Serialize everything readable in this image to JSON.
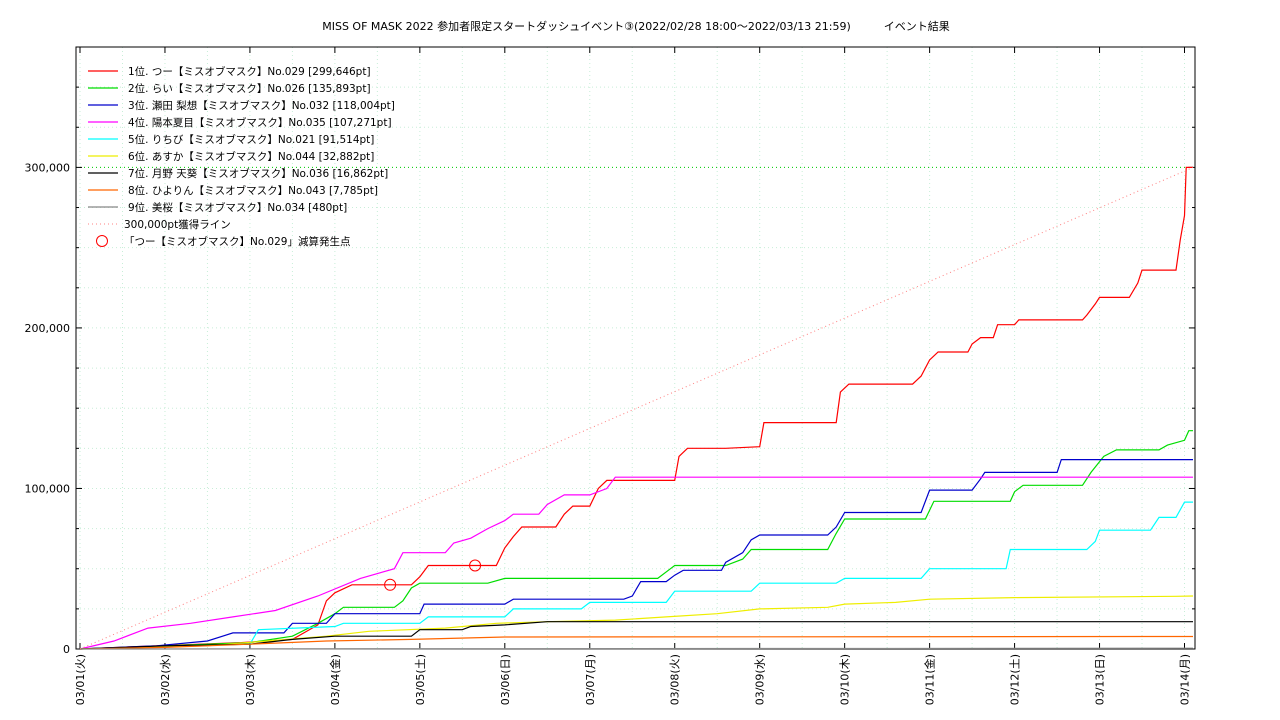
{
  "chart_data": {
    "type": "line",
    "title": "MISS OF MASK 2022 参加者限定スタートダッシュイベント③(2022/02/28 18:00～2022/03/13 21:59)　　　イベント結果",
    "xlabel": "",
    "ylabel": "",
    "ylim": [
      0,
      375000
    ],
    "yticks": [
      0,
      100000,
      200000,
      300000
    ],
    "ytick_labels": [
      "0",
      "100,000",
      "200,000",
      "300,000"
    ],
    "xlim": [
      0,
      13.1
    ],
    "xticks": [
      0,
      1,
      2,
      3,
      4,
      5,
      6,
      7,
      8,
      9,
      10,
      11,
      12,
      13
    ],
    "xtick_labels": [
      "03/01(火)",
      "03/02(水)",
      "03/03(木)",
      "03/04(金)",
      "03/05(土)",
      "03/06(日)",
      "03/07(月)",
      "03/08(火)",
      "03/09(水)",
      "03/10(木)",
      "03/11(金)",
      "03/12(土)",
      "03/13(日)",
      "03/14(月)"
    ],
    "grid": true,
    "legend_position": "top-left",
    "series": [
      {
        "name": "1位. つー【ミスオブマスク】No.029 [299,646pt]",
        "color": "#ff0000",
        "points": [
          [
            0,
            0
          ],
          [
            0.9,
            2000
          ],
          [
            1.9,
            4000
          ],
          [
            2.5,
            6000
          ],
          [
            2.8,
            15000
          ],
          [
            2.9,
            30000
          ],
          [
            3.0,
            35000
          ],
          [
            3.2,
            40000
          ],
          [
            3.9,
            40000
          ],
          [
            4.0,
            45000
          ],
          [
            4.1,
            52000
          ],
          [
            4.9,
            52000
          ],
          [
            5.0,
            63000
          ],
          [
            5.1,
            70000
          ],
          [
            5.2,
            76000
          ],
          [
            5.6,
            76000
          ],
          [
            5.7,
            84000
          ],
          [
            5.8,
            89000
          ],
          [
            6.0,
            89000
          ],
          [
            6.1,
            100000
          ],
          [
            6.2,
            105000
          ],
          [
            7.0,
            105000
          ],
          [
            7.05,
            120000
          ],
          [
            7.15,
            125000
          ],
          [
            7.6,
            125000
          ],
          [
            8.0,
            126000
          ],
          [
            8.05,
            141000
          ],
          [
            8.9,
            141000
          ],
          [
            8.95,
            160000
          ],
          [
            9.05,
            165000
          ],
          [
            9.8,
            165000
          ],
          [
            9.9,
            170000
          ],
          [
            10.0,
            180000
          ],
          [
            10.1,
            185000
          ],
          [
            10.45,
            185000
          ],
          [
            10.5,
            190000
          ],
          [
            10.6,
            194000
          ],
          [
            10.75,
            194000
          ],
          [
            10.8,
            202000
          ],
          [
            11.0,
            202000
          ],
          [
            11.05,
            205000
          ],
          [
            11.8,
            205000
          ],
          [
            11.85,
            208000
          ],
          [
            11.95,
            215000
          ],
          [
            12.0,
            219000
          ],
          [
            12.35,
            219000
          ],
          [
            12.45,
            228000
          ],
          [
            12.5,
            236000
          ],
          [
            12.9,
            236000
          ],
          [
            12.95,
            255000
          ],
          [
            13.0,
            270000
          ],
          [
            13.02,
            300000
          ],
          [
            13.1,
            300000
          ]
        ]
      },
      {
        "name": "2位. らい【ミスオブマスク】No.026 [135,893pt]",
        "color": "#00dd00",
        "points": [
          [
            0,
            0
          ],
          [
            1.0,
            2000
          ],
          [
            2.0,
            4000
          ],
          [
            2.5,
            8000
          ],
          [
            2.8,
            16000
          ],
          [
            3.0,
            22000
          ],
          [
            3.1,
            26000
          ],
          [
            3.7,
            26000
          ],
          [
            3.8,
            30000
          ],
          [
            3.9,
            38000
          ],
          [
            4.0,
            41000
          ],
          [
            4.8,
            41000
          ],
          [
            5.0,
            44000
          ],
          [
            6.8,
            44000
          ],
          [
            6.95,
            50000
          ],
          [
            7.0,
            52000
          ],
          [
            7.6,
            52000
          ],
          [
            7.8,
            56000
          ],
          [
            7.9,
            62000
          ],
          [
            8.8,
            62000
          ],
          [
            8.9,
            72000
          ],
          [
            9.0,
            81000
          ],
          [
            9.95,
            81000
          ],
          [
            10.05,
            92000
          ],
          [
            10.95,
            92000
          ],
          [
            11.0,
            98000
          ],
          [
            11.1,
            102000
          ],
          [
            11.8,
            102000
          ],
          [
            11.9,
            110000
          ],
          [
            12.05,
            120000
          ],
          [
            12.2,
            124000
          ],
          [
            12.7,
            124000
          ],
          [
            12.8,
            127000
          ],
          [
            13.0,
            130000
          ],
          [
            13.05,
            136000
          ],
          [
            13.1,
            136000
          ]
        ]
      },
      {
        "name": "3位. 瀬田 梨想【ミスオブマスク】No.032 [118,004pt]",
        "color": "#0000cc",
        "points": [
          [
            0,
            0
          ],
          [
            0.9,
            2000
          ],
          [
            1.5,
            5000
          ],
          [
            1.8,
            10000
          ],
          [
            2.4,
            10000
          ],
          [
            2.5,
            16000
          ],
          [
            2.9,
            16000
          ],
          [
            3.0,
            22000
          ],
          [
            4.0,
            22000
          ],
          [
            4.05,
            28000
          ],
          [
            5.0,
            28000
          ],
          [
            5.1,
            31000
          ],
          [
            6.4,
            31000
          ],
          [
            6.5,
            33000
          ],
          [
            6.6,
            42000
          ],
          [
            6.9,
            42000
          ],
          [
            7.0,
            46000
          ],
          [
            7.1,
            49000
          ],
          [
            7.55,
            49000
          ],
          [
            7.6,
            54000
          ],
          [
            7.8,
            60000
          ],
          [
            7.9,
            68000
          ],
          [
            8.0,
            71000
          ],
          [
            8.8,
            71000
          ],
          [
            8.9,
            76000
          ],
          [
            9.0,
            85000
          ],
          [
            9.9,
            85000
          ],
          [
            10.0,
            99000
          ],
          [
            10.5,
            99000
          ],
          [
            10.6,
            106000
          ],
          [
            10.65,
            110000
          ],
          [
            11.5,
            110000
          ],
          [
            11.55,
            118000
          ],
          [
            13.1,
            118000
          ]
        ]
      },
      {
        "name": "4位. 陽本夏目【ミスオブマスク】No.035 [107,271pt]",
        "color": "#ff00ff",
        "points": [
          [
            0,
            0
          ],
          [
            0.4,
            5000
          ],
          [
            0.8,
            13000
          ],
          [
            1.3,
            16000
          ],
          [
            1.8,
            20000
          ],
          [
            2.3,
            24000
          ],
          [
            2.8,
            33000
          ],
          [
            3.3,
            44000
          ],
          [
            3.7,
            50000
          ],
          [
            3.8,
            60000
          ],
          [
            4.3,
            60000
          ],
          [
            4.4,
            66000
          ],
          [
            4.6,
            69000
          ],
          [
            4.8,
            75000
          ],
          [
            5.0,
            80000
          ],
          [
            5.1,
            84000
          ],
          [
            5.4,
            84000
          ],
          [
            5.5,
            90000
          ],
          [
            5.7,
            96000
          ],
          [
            6.0,
            96000
          ],
          [
            6.2,
            100000
          ],
          [
            6.3,
            107000
          ],
          [
            13.1,
            107000
          ]
        ]
      },
      {
        "name": "5位. りちび【ミスオブマスク】No.021 [91,514pt]",
        "color": "#00ffff",
        "points": [
          [
            0,
            0
          ],
          [
            2.0,
            3000
          ],
          [
            2.1,
            12000
          ],
          [
            3.0,
            14000
          ],
          [
            3.1,
            16000
          ],
          [
            4.0,
            16000
          ],
          [
            4.1,
            20000
          ],
          [
            5.0,
            20000
          ],
          [
            5.1,
            25000
          ],
          [
            5.9,
            25000
          ],
          [
            6.0,
            29000
          ],
          [
            6.9,
            29000
          ],
          [
            7.0,
            36000
          ],
          [
            7.9,
            36000
          ],
          [
            8.0,
            41000
          ],
          [
            8.9,
            41000
          ],
          [
            9.0,
            44000
          ],
          [
            9.9,
            44000
          ],
          [
            10.0,
            50000
          ],
          [
            10.9,
            50000
          ],
          [
            10.95,
            62000
          ],
          [
            11.85,
            62000
          ],
          [
            11.95,
            67000
          ],
          [
            12.0,
            74000
          ],
          [
            12.6,
            74000
          ],
          [
            12.7,
            82000
          ],
          [
            12.9,
            82000
          ],
          [
            13.0,
            91500
          ],
          [
            13.1,
            91500
          ]
        ]
      },
      {
        "name": "6位. あすか【ミスオブマスク】No.044 [32,882pt]",
        "color": "#eeee00",
        "points": [
          [
            0,
            0
          ],
          [
            1.5,
            2000
          ],
          [
            2.2,
            5000
          ],
          [
            2.9,
            8000
          ],
          [
            3.4,
            11000
          ],
          [
            4.3,
            13000
          ],
          [
            4.9,
            16000
          ],
          [
            5.5,
            17000
          ],
          [
            6.3,
            18000
          ],
          [
            6.9,
            20000
          ],
          [
            7.5,
            22000
          ],
          [
            8.0,
            25000
          ],
          [
            8.8,
            26000
          ],
          [
            9.0,
            28000
          ],
          [
            9.6,
            29000
          ],
          [
            10.0,
            31000
          ],
          [
            11.0,
            32000
          ],
          [
            12.9,
            32800
          ],
          [
            13.1,
            33000
          ]
        ]
      },
      {
        "name": "7位. 月野 天葵【ミスオブマスク】No.036 [16,862pt]",
        "color": "#000000",
        "points": [
          [
            0,
            0
          ],
          [
            1.0,
            2000
          ],
          [
            2.0,
            3000
          ],
          [
            2.5,
            6000
          ],
          [
            3.0,
            8000
          ],
          [
            3.9,
            8000
          ],
          [
            4.0,
            12000
          ],
          [
            4.5,
            12000
          ],
          [
            4.6,
            14000
          ],
          [
            5.0,
            15000
          ],
          [
            5.5,
            17000
          ],
          [
            13.1,
            17000
          ]
        ]
      },
      {
        "name": "8位. ひよりん【ミスオブマスク】No.043 [7,785pt]",
        "color": "#ff6600",
        "points": [
          [
            0,
            0
          ],
          [
            1.0,
            1000
          ],
          [
            2.0,
            3000
          ],
          [
            2.9,
            5000
          ],
          [
            3.9,
            6000
          ],
          [
            5.0,
            7500
          ],
          [
            13.1,
            7800
          ]
        ]
      },
      {
        "name": "9位. 美桜【ミスオブマスク】No.034 [480pt]",
        "color": "#888888",
        "points": [
          [
            0,
            0
          ],
          [
            13.1,
            480
          ]
        ]
      },
      {
        "name": "300,000pt獲得ライン",
        "color": "#ff8080",
        "dashed": true,
        "points": [
          [
            0,
            0
          ],
          [
            13.1,
            300000
          ]
        ]
      }
    ],
    "markers": {
      "name": "「つー【ミスオブマスク】No.029」減算発生点",
      "color": "#ff0000",
      "points": [
        [
          3.65,
          40000
        ],
        [
          4.65,
          52000
        ]
      ]
    },
    "reference_line": {
      "y": 300000,
      "color": "#00cc00"
    }
  }
}
